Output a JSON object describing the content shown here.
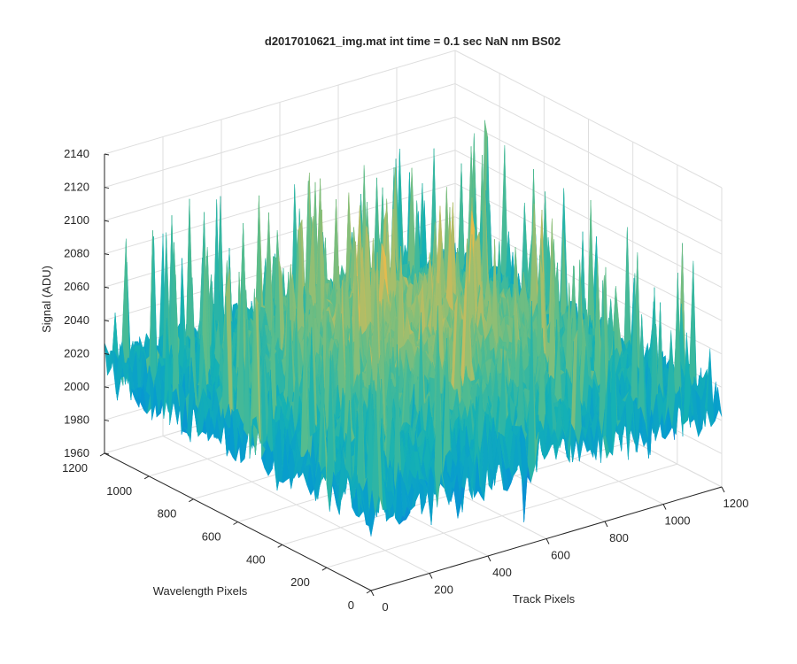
{
  "chart_data": {
    "type": "surface",
    "title": "d2017010621_img.mat int time = 0.1 sec  NaN nm BS02",
    "xlabel": "Track Pixels",
    "ylabel": "Wavelength Pixels",
    "zlabel": "Signal (ADU)",
    "xlim": [
      0,
      1200
    ],
    "ylim": [
      0,
      1200
    ],
    "zlim": [
      1960,
      2140
    ],
    "x_ticks": [
      "0",
      "200",
      "400",
      "600",
      "800",
      "1000",
      "1200"
    ],
    "y_ticks": [
      "0",
      "200",
      "400",
      "600",
      "800",
      "1000",
      "1200"
    ],
    "z_ticks": [
      "1960",
      "1980",
      "2000",
      "2020",
      "2040",
      "2060",
      "2080",
      "2100",
      "2120",
      "2140"
    ],
    "grid": true,
    "colormap": "parula",
    "surface_profile": {
      "mean_at_edges": 2010,
      "mean_at_center": 2050,
      "noise_amplitude": 25,
      "peak_max": 2130,
      "min": 1965
    }
  }
}
